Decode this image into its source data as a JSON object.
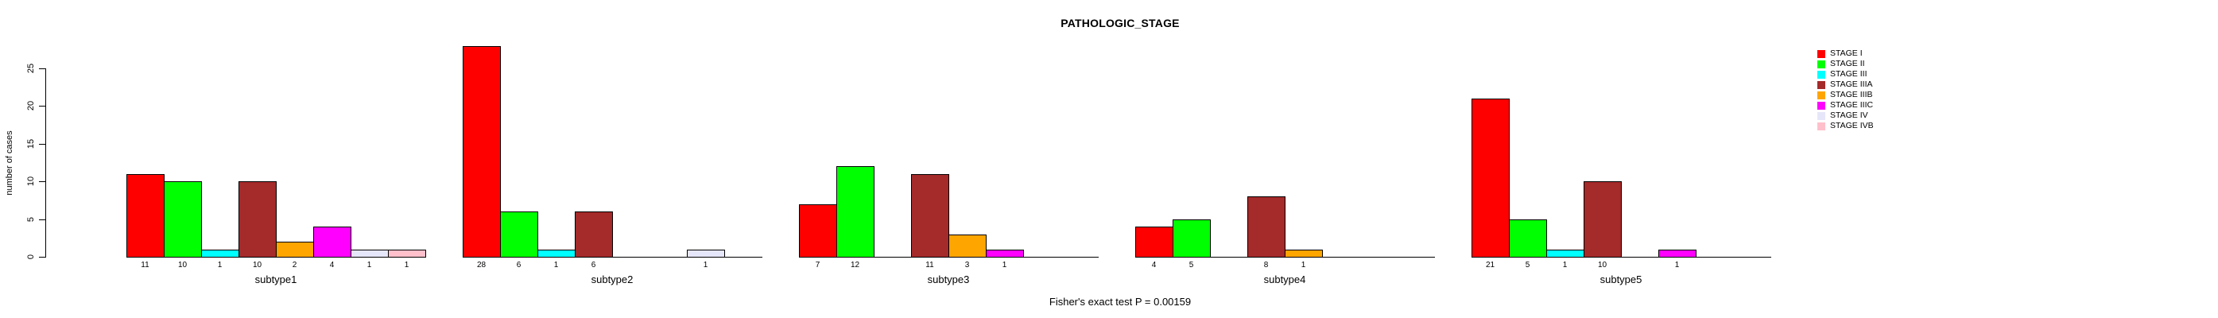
{
  "title": "PATHOLOGIC_STAGE",
  "chart_data": {
    "type": "bar",
    "title": "PATHOLOGIC_STAGE",
    "xlabel": "",
    "ylabel": "number of cases",
    "annotation": "Fisher's exact test P = 0.00159",
    "categories": [
      "subtype1",
      "subtype2",
      "subtype3",
      "subtype4",
      "subtype5"
    ],
    "yticks": [
      0,
      5,
      10,
      15,
      20,
      25
    ],
    "ylim": [
      0,
      28
    ],
    "grid": false,
    "legend_position": "top-right",
    "bar_value_labels": true,
    "series": [
      {
        "name": "STAGE I",
        "color": "#FF0000",
        "values": [
          11,
          28,
          7,
          4,
          21
        ]
      },
      {
        "name": "STAGE II",
        "color": "#00FF00",
        "values": [
          10,
          6,
          12,
          5,
          5
        ]
      },
      {
        "name": "STAGE III",
        "color": "#00FFFF",
        "values": [
          1,
          1,
          0,
          0,
          1
        ]
      },
      {
        "name": "STAGE IIIA",
        "color": "#A52A2A",
        "values": [
          10,
          6,
          11,
          8,
          10
        ]
      },
      {
        "name": "STAGE IIIB",
        "color": "#FFA500",
        "values": [
          2,
          0,
          3,
          1,
          0
        ]
      },
      {
        "name": "STAGE IIIC",
        "color": "#FF00FF",
        "values": [
          4,
          0,
          1,
          0,
          1
        ]
      },
      {
        "name": "STAGE IV",
        "color": "#E6E6FA",
        "values": [
          1,
          1,
          0,
          0,
          0
        ]
      },
      {
        "name": "STAGE IVB",
        "color": "#FFC0CB",
        "values": [
          1,
          0,
          0,
          0,
          0
        ]
      }
    ]
  }
}
